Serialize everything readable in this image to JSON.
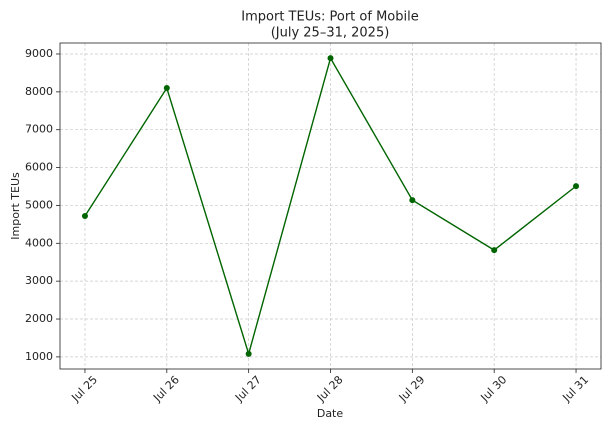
{
  "chart_data": {
    "type": "line",
    "title": "Import TEUs: Port of Mobile",
    "subtitle": "(July 25–31, 2025)",
    "x_label": "Date",
    "y_label": "Import TEUs",
    "categories": [
      "Jul 25",
      "Jul 26",
      "Jul 27",
      "Jul 28",
      "Jul 29",
      "Jul 30",
      "Jul 31"
    ],
    "series": [
      {
        "name": "Import TEUs",
        "color": "#006400",
        "values": [
          4720,
          8100,
          1080,
          8890,
          5140,
          3820,
          5510
        ]
      }
    ],
    "ylim": [
      680,
      9290
    ],
    "yticks": [
      1000,
      2000,
      3000,
      4000,
      5000,
      6000,
      7000,
      8000,
      9000
    ],
    "grid": true
  }
}
